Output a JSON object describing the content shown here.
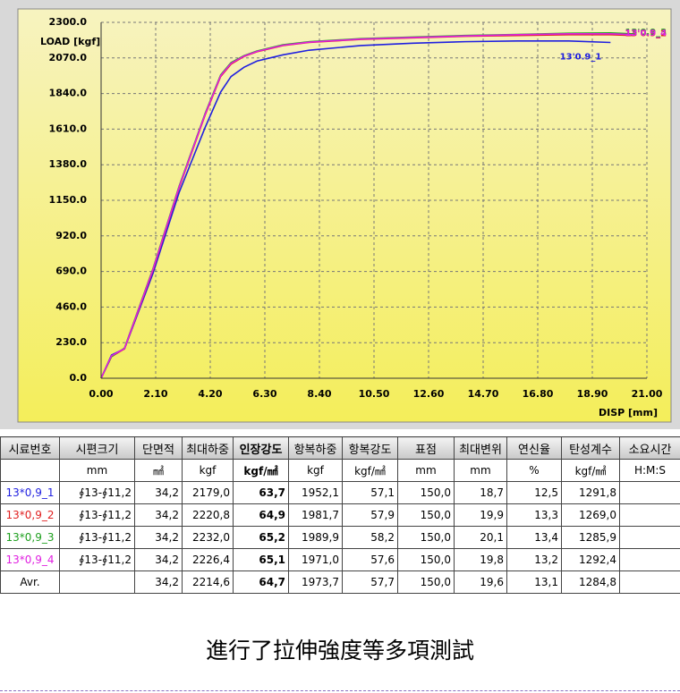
{
  "chart_data": {
    "type": "line",
    "y_label": "LOAD [kgf]",
    "x_label": "DISP [mm]",
    "x": [
      0,
      0.4,
      0.9,
      2,
      3,
      4,
      4.6,
      5,
      5.5,
      6,
      7,
      8,
      10,
      12,
      14,
      16,
      18,
      19.6,
      20.5
    ],
    "series": [
      {
        "name": "13'0.9_1",
        "color": "#1f1fe0",
        "values": [
          0,
          150,
          190,
          680,
          1200,
          1620,
          1850,
          1950,
          2010,
          2050,
          2090,
          2120,
          2150,
          2165,
          2175,
          2180,
          2180,
          2170,
          null
        ]
      },
      {
        "name": "13'0.9_2",
        "color": "#e01f1f",
        "values": [
          0,
          140,
          190,
          700,
          1230,
          1700,
          1950,
          2030,
          2080,
          2110,
          2150,
          2170,
          2190,
          2200,
          2210,
          2215,
          2220,
          2220,
          2215
        ]
      },
      {
        "name": "13'0.9_3",
        "color": "#1fa01f",
        "values": [
          0,
          140,
          195,
          710,
          1240,
          1710,
          1960,
          2040,
          2085,
          2115,
          2155,
          2175,
          2195,
          2205,
          2215,
          2222,
          2230,
          2232,
          2225
        ]
      },
      {
        "name": "13'0.9_4",
        "color": "#e01fe0",
        "values": [
          0,
          145,
          192,
          705,
          1235,
          1705,
          1955,
          2035,
          2082,
          2112,
          2152,
          2172,
          2192,
          2202,
          2212,
          2220,
          2226,
          2226,
          2220
        ]
      }
    ],
    "xlim": [
      0,
      21
    ],
    "ylim": [
      0,
      2300
    ],
    "xticks": [
      {
        "value": 0,
        "label": "0.00"
      },
      {
        "value": 2.1,
        "label": "2.10"
      },
      {
        "value": 4.2,
        "label": "4.20"
      },
      {
        "value": 6.3,
        "label": "6.30"
      },
      {
        "value": 8.4,
        "label": "8.40"
      },
      {
        "value": 10.5,
        "label": "10.50"
      },
      {
        "value": 12.6,
        "label": "12.60"
      },
      {
        "value": 14.7,
        "label": "14.70"
      },
      {
        "value": 16.8,
        "label": "16.80"
      },
      {
        "value": 18.9,
        "label": "18.90"
      },
      {
        "value": 21,
        "label": "21.00"
      }
    ],
    "yticks": [
      {
        "value": 0,
        "label": "0.0"
      },
      {
        "value": 230,
        "label": "230.0"
      },
      {
        "value": 460,
        "label": "460.0"
      },
      {
        "value": 690,
        "label": "690.0"
      },
      {
        "value": 920,
        "label": "920.0"
      },
      {
        "value": 1150,
        "label": "1150.0"
      },
      {
        "value": 1380,
        "label": "1380.0"
      },
      {
        "value": 1610,
        "label": "1610.0"
      },
      {
        "value": 1840,
        "label": "1840.0"
      },
      {
        "value": 2070,
        "label": "2070.0"
      },
      {
        "value": 2300,
        "label": "2300.0"
      }
    ],
    "grid": true
  },
  "table": {
    "header": [
      "시료번호",
      "시편크기",
      "단면적",
      "최대하중",
      "인장강도",
      "항복하중",
      "항복강도",
      "표점",
      "최대변위",
      "연신율",
      "탄성계수",
      "소요시간"
    ],
    "units": [
      null,
      "mm",
      "㎟",
      "kgf",
      "kgf/㎟",
      "kgf",
      "kgf/㎟",
      "mm",
      "mm",
      "%",
      "kgf/㎟",
      "H:M:S"
    ],
    "rows": [
      [
        "13*0,9_1",
        "∮13-∮11,2",
        "34,2",
        "2179,0",
        "63,7",
        "1952,1",
        "57,1",
        "150,0",
        "18,7",
        "12,5",
        "1291,8",
        null
      ],
      [
        "13*0,9_2",
        "∮13-∮11,2",
        "34,2",
        "2220,8",
        "64,9",
        "1981,7",
        "57,9",
        "150,0",
        "19,9",
        "13,3",
        "1269,0",
        null
      ],
      [
        "13*0,9_3",
        "∮13-∮11,2",
        "34,2",
        "2232,0",
        "65,2",
        "1989,9",
        "58,2",
        "150,0",
        "20,1",
        "13,4",
        "1285,9",
        null
      ],
      [
        "13*0,9_4",
        "∮13-∮11,2",
        "34,2",
        "2226,4",
        "65,1",
        "1971,0",
        "57,6",
        "150,0",
        "19,8",
        "13,2",
        "1292,4",
        null
      ],
      [
        "Avr.",
        null,
        "34,2",
        "2214,6",
        "64,7",
        "1973,7",
        "57,7",
        "150,0",
        "19,6",
        "13,1",
        "1284,8",
        null
      ]
    ]
  },
  "caption": "進行了拉伸強度等多項測試"
}
